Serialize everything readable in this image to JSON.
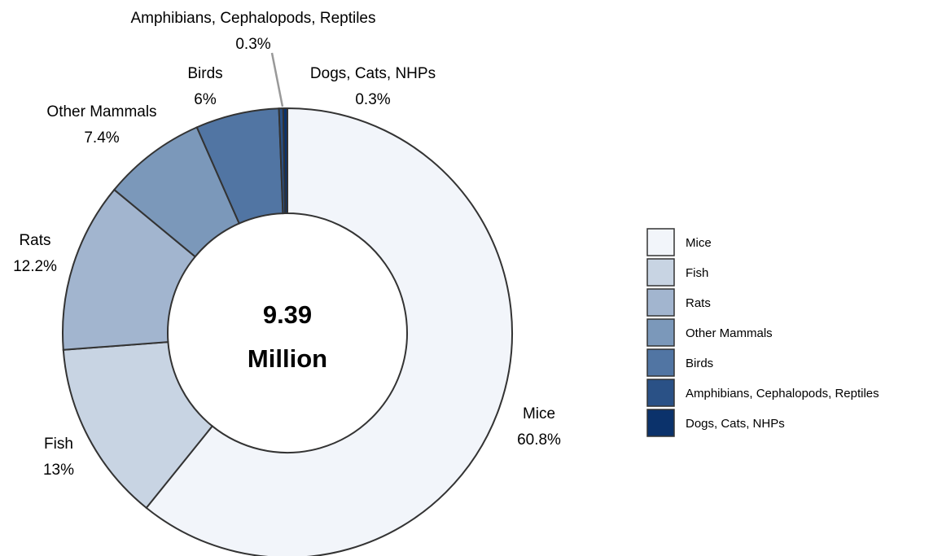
{
  "chart_data": {
    "type": "pie",
    "donut": true,
    "center_label": [
      "9.39",
      "Million"
    ],
    "slices": [
      {
        "name": "Mice",
        "value": 60.8,
        "label": "60.8%",
        "color": "#f2f5fa"
      },
      {
        "name": "Fish",
        "value": 13,
        "label": "13%",
        "color": "#c8d4e3"
      },
      {
        "name": "Rats",
        "value": 12.2,
        "label": "12.2%",
        "color": "#a2b5cf"
      },
      {
        "name": "Other Mammals",
        "value": 7.4,
        "label": "7.4%",
        "color": "#7b98ba"
      },
      {
        "name": "Birds",
        "value": 6,
        "label": "6%",
        "color": "#5175a3"
      },
      {
        "name": "Amphibians, Cephalopods, Reptiles",
        "value": 0.3,
        "label": "0.3%",
        "color": "#2a5186"
      },
      {
        "name": "Dogs, Cats, NHPs",
        "value": 0.3,
        "label": "0.3%",
        "color": "#0b326b"
      }
    ],
    "legend": {
      "position": "right",
      "entries": [
        "Mice",
        "Fish",
        "Rats",
        "Other Mammals",
        "Birds",
        "Amphibians, Cephalopods, Reptiles",
        "Dogs, Cats, NHPs"
      ]
    }
  }
}
